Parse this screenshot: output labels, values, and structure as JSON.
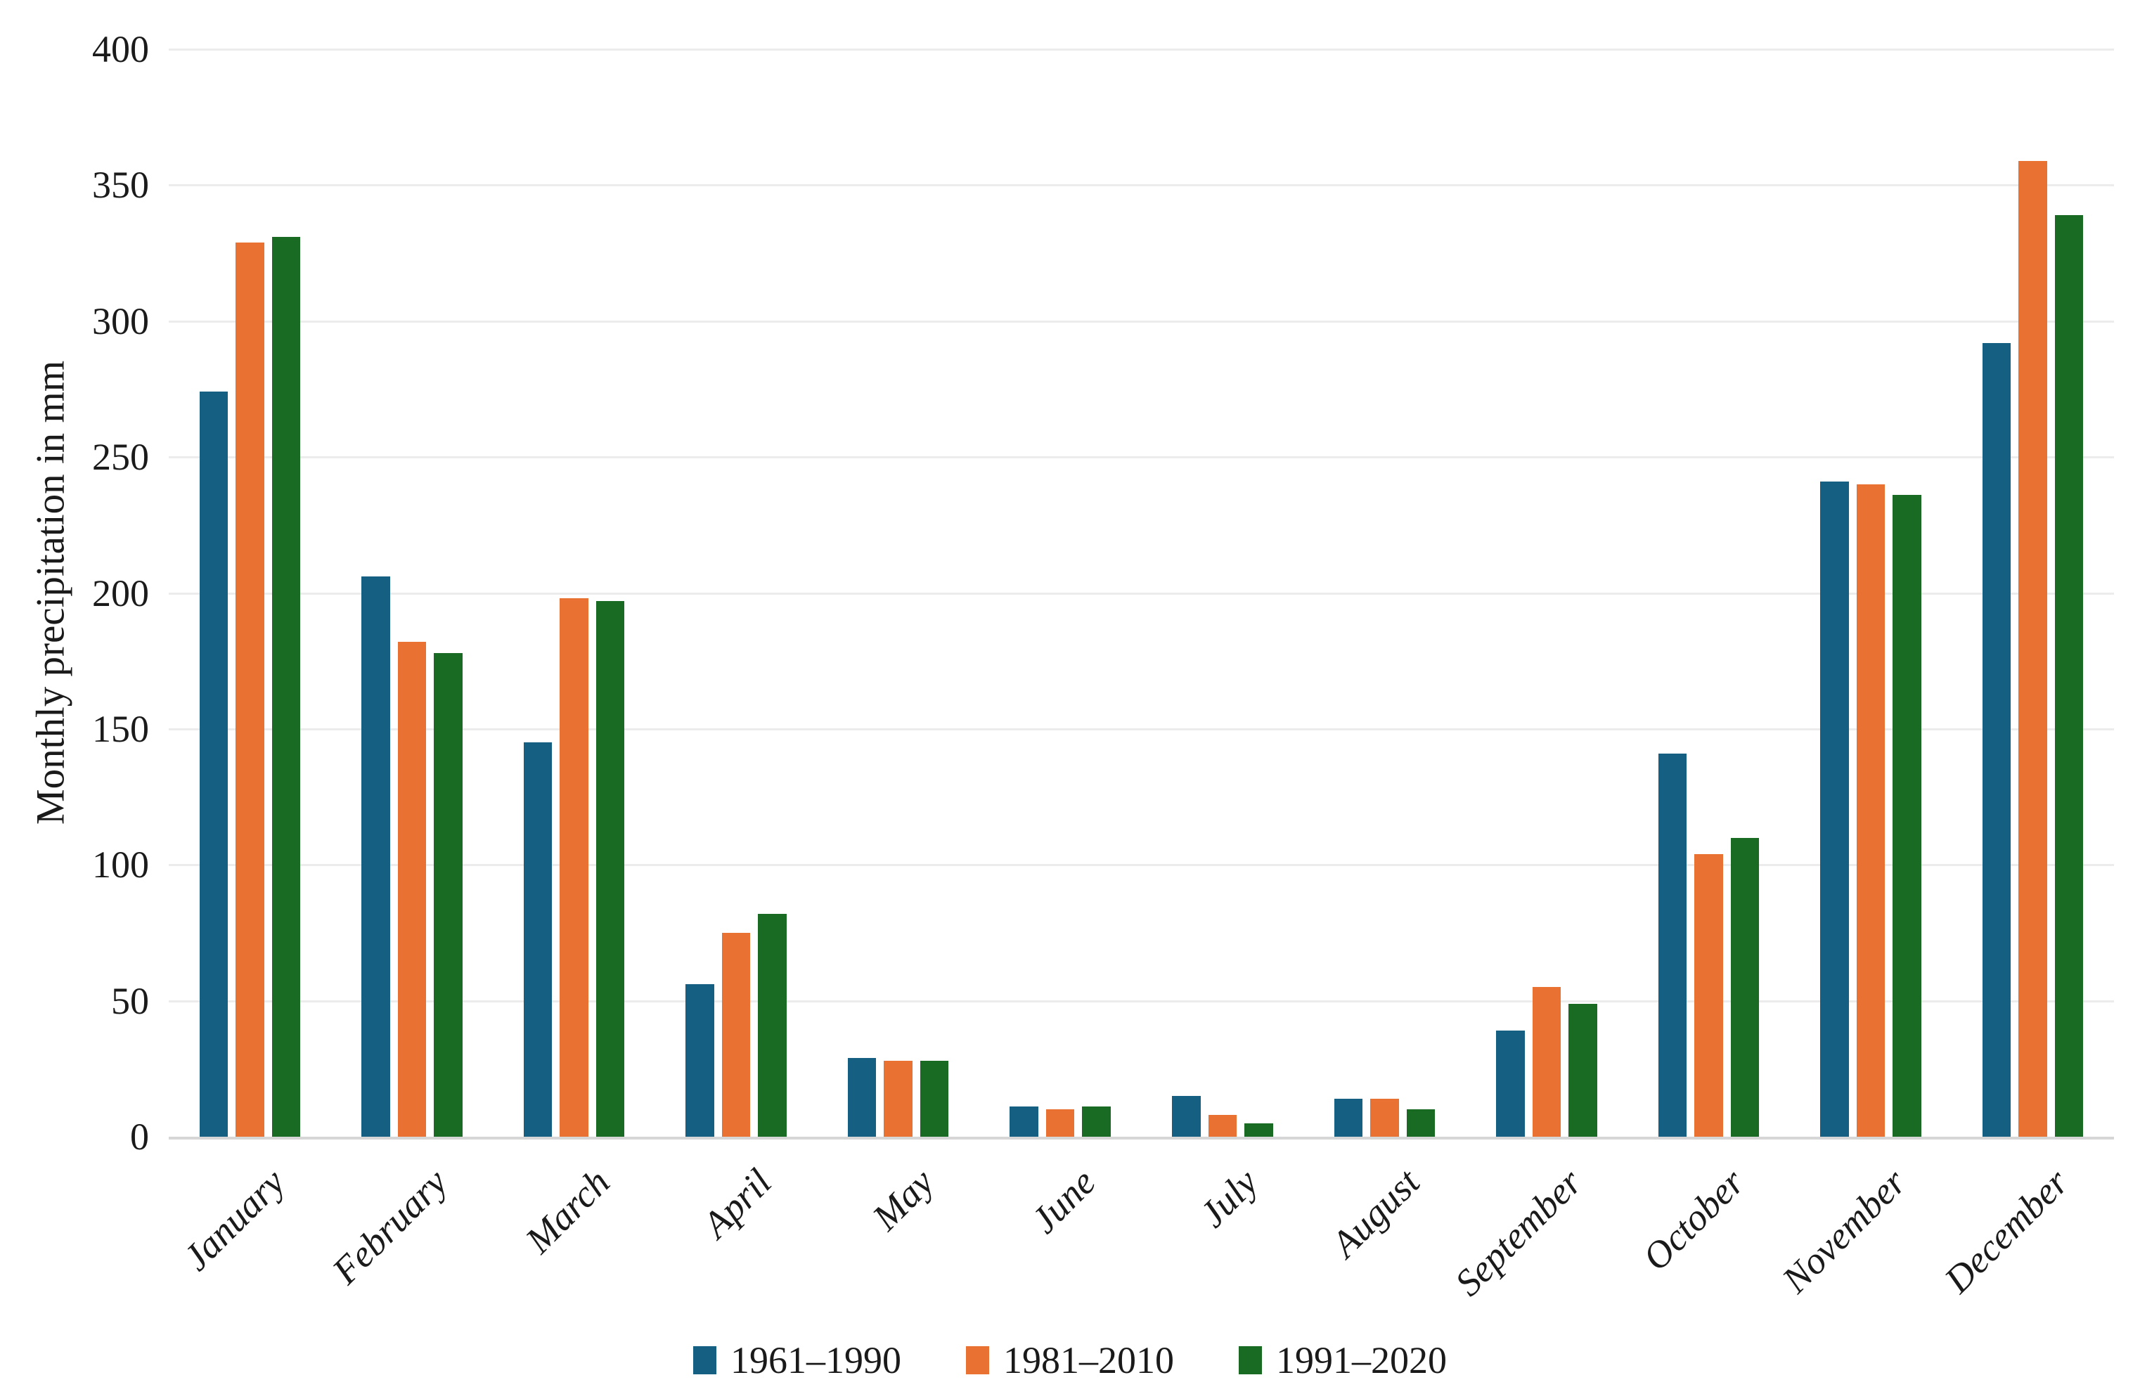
{
  "chart_data": {
    "type": "bar",
    "title": "",
    "xlabel": "",
    "ylabel": "Monthly precipitation in mm",
    "ylim": [
      0,
      400
    ],
    "yticks": [
      0,
      50,
      100,
      150,
      200,
      250,
      300,
      350,
      400
    ],
    "grid": "horizontal-light",
    "legend_position": "bottom-center",
    "categories": [
      "January",
      "February",
      "March",
      "April",
      "May",
      "June",
      "July",
      "August",
      "September",
      "October",
      "November",
      "December"
    ],
    "series": [
      {
        "name": "1961–1990",
        "color": "#156082",
        "values": [
          274,
          206,
          145,
          56,
          29,
          11,
          15,
          14,
          39,
          141,
          241,
          292
        ]
      },
      {
        "name": "1981–2010",
        "color": "#E97132",
        "values": [
          329,
          182,
          198,
          75,
          28,
          10,
          8,
          14,
          55,
          104,
          240,
          359
        ]
      },
      {
        "name": "1991–2020",
        "color": "#196B24",
        "values": [
          331,
          178,
          197,
          82,
          28,
          11,
          5,
          10,
          49,
          110,
          236,
          339
        ]
      }
    ],
    "colors": {
      "gridline": "#ececec",
      "axis_line": "#d6d6d6",
      "text": "#1a1a1a",
      "background": "#ffffff"
    }
  }
}
